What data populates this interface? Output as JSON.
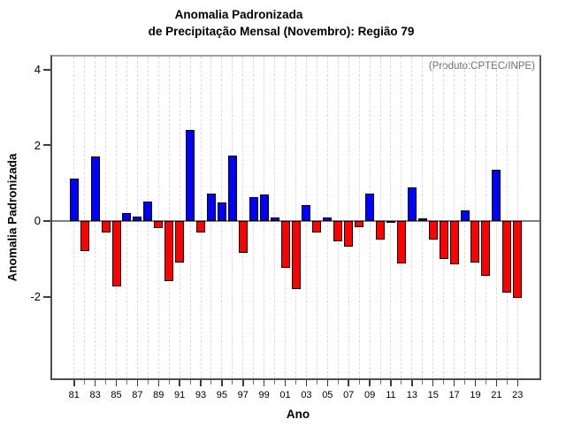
{
  "figure": {
    "title_line1": "Anomalia Padronizada",
    "title_line2": "de Precipitação Mensal (Novembro): Região 79",
    "annotation": "(Produto:CPTEC/INPE)",
    "xlabel": "Ano",
    "ylabel": "Anomalia Padronizada"
  },
  "chart_data": {
    "type": "bar",
    "title": "Anomalia Padronizada de Precipitação Mensal (Novembro): Região 79",
    "xlabel": "Ano",
    "ylabel": "Anomalia Padronizada",
    "annotation": "(Produto:CPTEC/INPE)",
    "categories": [
      1981,
      1982,
      1983,
      1984,
      1985,
      1986,
      1987,
      1988,
      1989,
      1990,
      1991,
      1992,
      1993,
      1994,
      1995,
      1996,
      1997,
      1998,
      1999,
      2000,
      2001,
      2002,
      2003,
      2004,
      2005,
      2006,
      2007,
      2008,
      2009,
      2010,
      2011,
      2012,
      2013,
      2014,
      2015,
      2016,
      2017,
      2018,
      2019,
      2020,
      2021,
      2022,
      2023
    ],
    "values": [
      1.12,
      -0.79,
      1.7,
      -0.31,
      -1.72,
      0.21,
      0.12,
      0.5,
      -0.18,
      -1.6,
      -1.1,
      2.4,
      -0.31,
      0.73,
      0.48,
      1.72,
      -0.85,
      0.63,
      0.69,
      0.1,
      -1.25,
      -1.81,
      0.42,
      -0.31,
      0.1,
      -0.55,
      -0.68,
      -0.17,
      0.73,
      -0.5,
      -0.03,
      -1.12,
      0.88,
      0.03,
      -0.5,
      -1.0,
      -1.14,
      0.28,
      -1.09,
      -1.44,
      1.35,
      -1.9,
      -2.04
    ],
    "x_tick_labels": [
      "81",
      "83",
      "85",
      "87",
      "89",
      "91",
      "93",
      "95",
      "97",
      "99",
      "01",
      "03",
      "05",
      "07",
      "09",
      "11",
      "13",
      "15",
      "17",
      "19",
      "21",
      "23"
    ],
    "x_label_every": 2,
    "y_ticks": [
      -2,
      0,
      2,
      4
    ],
    "ylim": [
      -4.16,
      4.34
    ],
    "grid": "vertical-dashed",
    "legend": "none",
    "colors": {
      "positive": "#0000FF",
      "negative": "#FF0000",
      "bar_border": "#000000",
      "zero_line": "#7D7D7D",
      "grid": "#DADADA",
      "annotation_text": "#6F6F6F"
    }
  }
}
